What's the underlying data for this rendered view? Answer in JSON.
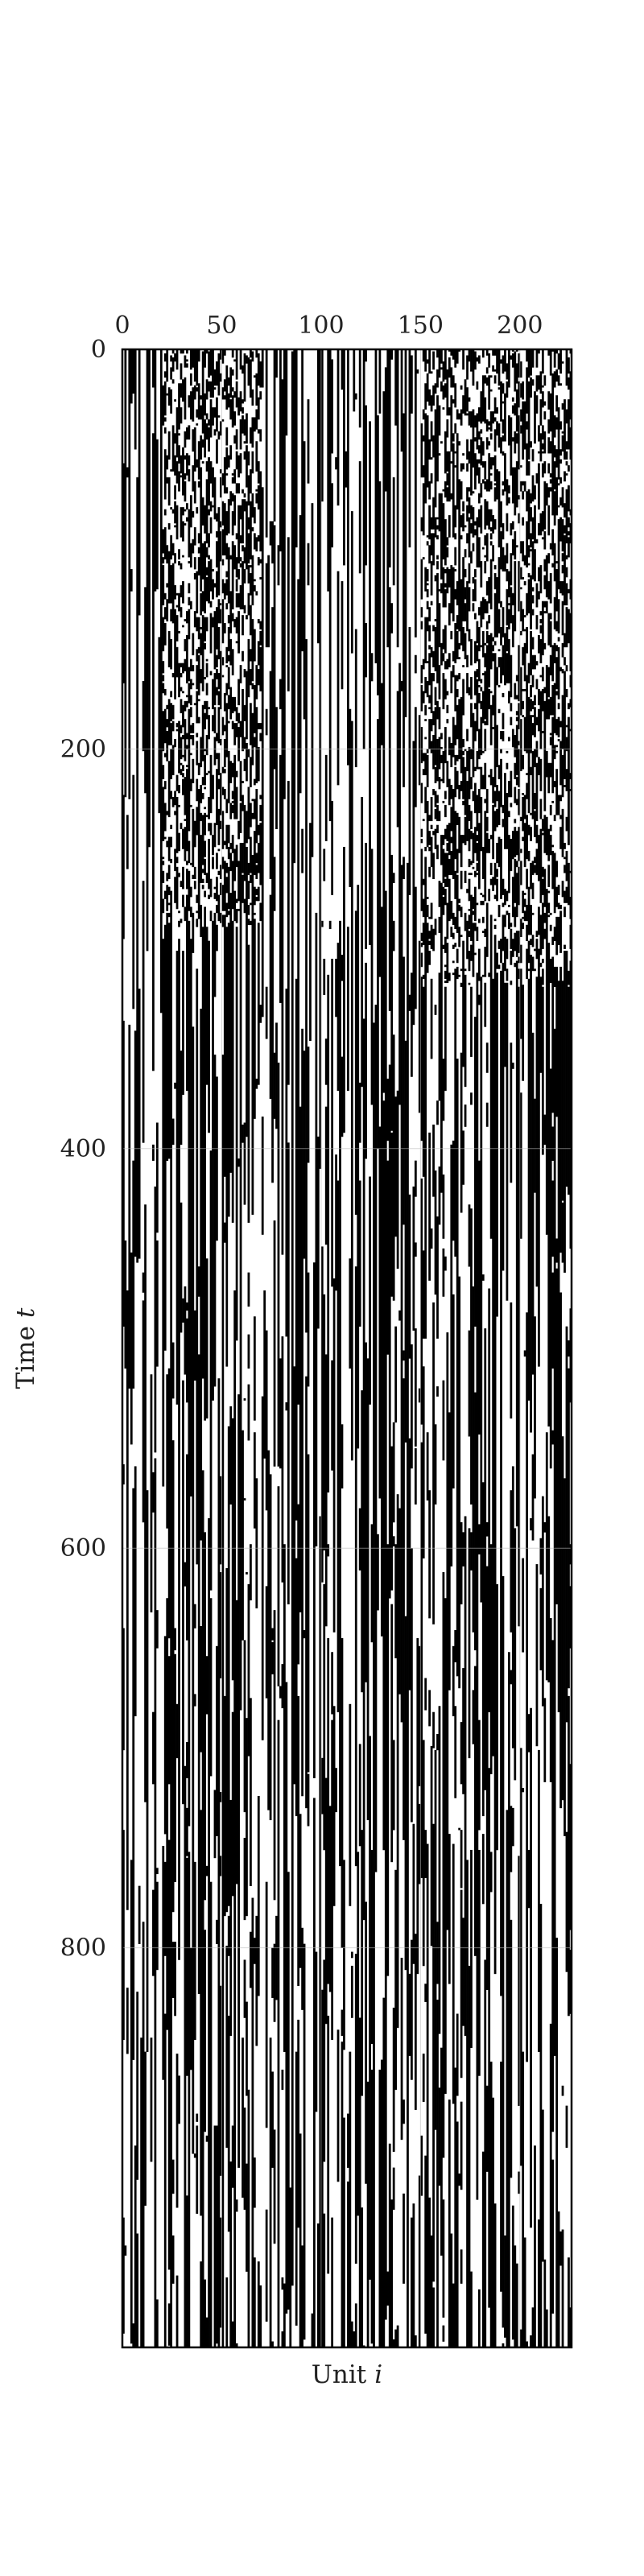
{
  "chart_data": {
    "type": "heatmap",
    "title": "",
    "xlabel": "Unit",
    "xlabel_var": "i",
    "ylabel": "Time",
    "ylabel_var": "t",
    "x_axis_position": "top",
    "xlim": [
      0,
      226
    ],
    "ylim": [
      0,
      1000
    ],
    "y_inverted": true,
    "xticks": [
      0,
      50,
      100,
      150,
      200
    ],
    "yticks": [
      0,
      200,
      400,
      600,
      800
    ],
    "grid": true,
    "colormap": {
      "0": "#ffffff",
      "1": "#000000"
    },
    "values": "binary raster: 1000 time steps x 226 units; each unit holds a mostly persistent on/off state (vertical stripes) with sparse flips; the early block t=0..300 shows denser switching, especially for units ~20-70 and ~150-225",
    "dense_blocks": [
      {
        "units": [
          20,
          70
        ],
        "t": [
          0,
          290
        ],
        "note": "dense switching"
      },
      {
        "units": [
          150,
          226
        ],
        "t": [
          0,
          320
        ],
        "note": "dense switching"
      }
    ]
  }
}
